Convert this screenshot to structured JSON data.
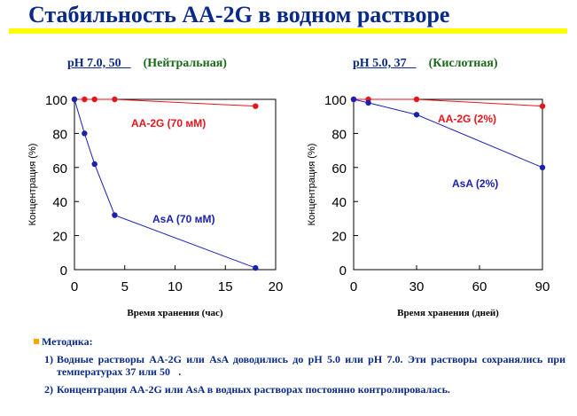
{
  "title": "Стабильность AA-2G в водном растворе",
  "panels": [
    {
      "condition": "pH 7.0, 50\u0000",
      "type_label": "(Нейтральная)"
    },
    {
      "condition": "pH 5.0, 37\u0000",
      "type_label": "(Кислотная)"
    }
  ],
  "methods": {
    "heading": "Методика:",
    "steps": [
      {
        "num": "1)",
        "text": "Водные растворы AA-2G или AsA доводились до pH 5.0 или pH 7.0. Эти растворы сохранялись при температурах 37 или 50\u0000."
      },
      {
        "num": "2)",
        "text": "Концентрация AA-2G или AsA в водных растворах постоянно контролировалась."
      }
    ]
  },
  "colors": {
    "aa2g": "#e8141b",
    "asa": "#1a21b0",
    "title": "#0a2a8a",
    "accent_bar": "#ffff00"
  },
  "chart_data": [
    {
      "type": "line",
      "xlabel": "Время хранения (час)",
      "ylabel": "Концентрация (%)",
      "xlim": [
        0,
        20
      ],
      "ylim": [
        0,
        100
      ],
      "xticks": [
        0,
        5,
        10,
        15,
        20
      ],
      "yticks": [
        0,
        20,
        40,
        60,
        80,
        100
      ],
      "series": [
        {
          "name": "AA-2G  (70 мМ)",
          "color": "#e8141b",
          "x": [
            0,
            1,
            2,
            4,
            18
          ],
          "y": [
            100,
            100,
            100,
            100,
            96
          ]
        },
        {
          "name": "AsA (70 мМ)",
          "color": "#1a21b0",
          "x": [
            0,
            1,
            2,
            4,
            18
          ],
          "y": [
            100,
            80,
            62,
            32,
            1
          ]
        }
      ]
    },
    {
      "type": "line",
      "xlabel": "Время хранения (дней)",
      "ylabel": "Концентрация (%)",
      "xlim": [
        0,
        90
      ],
      "ylim": [
        0,
        100
      ],
      "xticks": [
        0,
        30,
        60,
        90
      ],
      "yticks": [
        0,
        20,
        40,
        60,
        80,
        100
      ],
      "series": [
        {
          "name": "AA-2G (2%)",
          "color": "#e8141b",
          "x": [
            0,
            7,
            30,
            90
          ],
          "y": [
            100,
            100,
            100,
            96
          ]
        },
        {
          "name": "AsA (2%)",
          "color": "#1a21b0",
          "x": [
            0,
            7,
            30,
            90
          ],
          "y": [
            100,
            98,
            91,
            60
          ]
        }
      ]
    }
  ]
}
